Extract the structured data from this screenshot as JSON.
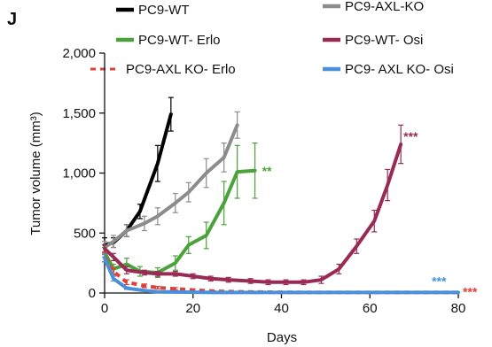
{
  "panel_label": "J",
  "chart_data": {
    "type": "line",
    "xlabel": "Days",
    "ylabel": "Tumor volume (mm³)",
    "xlim": [
      0,
      80
    ],
    "ylim": [
      0,
      2000
    ],
    "xticks": [
      0,
      20,
      40,
      60,
      80
    ],
    "yticks": [
      0,
      500,
      1000,
      1500,
      2000
    ],
    "xtick_labels": [
      "0",
      "20",
      "40",
      "60",
      "80"
    ],
    "ytick_labels": [
      "0",
      "500",
      "1,000",
      "1,500",
      "2,000"
    ],
    "grid": false,
    "legend_position": "top",
    "series": [
      {
        "name": "PC9-WT",
        "color": "#000000",
        "dashed": false,
        "x": [
          0,
          2,
          5,
          8,
          12,
          15
        ],
        "y": [
          400,
          420,
          520,
          680,
          1080,
          1490
        ],
        "err": [
          60,
          40,
          50,
          60,
          150,
          140
        ],
        "significance": ""
      },
      {
        "name": "PC9-AXL-KO",
        "color": "#8c8c8c",
        "dashed": false,
        "x": [
          0,
          2,
          5,
          9,
          12,
          16,
          19,
          23,
          27,
          30
        ],
        "y": [
          380,
          430,
          520,
          580,
          640,
          750,
          840,
          1000,
          1130,
          1400
        ],
        "err": [
          50,
          50,
          50,
          60,
          70,
          80,
          80,
          120,
          120,
          110
        ],
        "significance": ""
      },
      {
        "name": "PC9-WT- Erlo",
        "color": "#4aa33a",
        "dashed": false,
        "x": [
          0,
          2,
          5,
          8,
          12,
          16,
          19,
          23,
          27,
          30,
          34
        ],
        "y": [
          340,
          200,
          240,
          180,
          170,
          250,
          400,
          480,
          750,
          1010,
          1020
        ],
        "err": [
          40,
          40,
          50,
          40,
          40,
          60,
          70,
          110,
          180,
          220,
          230
        ],
        "significance": "**"
      },
      {
        "name": "PC9-WT- Osi",
        "color": "#992a55",
        "dashed": false,
        "x": [
          0,
          2,
          5,
          9,
          12,
          16,
          20,
          24,
          28,
          33,
          37,
          41,
          45,
          49,
          53,
          57,
          61,
          64,
          67
        ],
        "y": [
          370,
          300,
          190,
          170,
          160,
          160,
          140,
          120,
          110,
          100,
          90,
          90,
          90,
          110,
          200,
          390,
          600,
          900,
          1240
        ],
        "err": [
          30,
          30,
          30,
          20,
          20,
          20,
          20,
          20,
          20,
          20,
          20,
          20,
          20,
          30,
          40,
          60,
          90,
          130,
          160
        ],
        "significance": "***"
      },
      {
        "name": "PC9-AXL KO- Erlo",
        "color": "#e0403a",
        "dashed": true,
        "x": [
          0,
          2,
          5,
          9,
          12,
          16,
          20,
          25,
          30,
          35,
          40,
          45,
          50,
          55,
          60,
          65,
          70,
          75,
          80
        ],
        "y": [
          300,
          180,
          90,
          60,
          45,
          35,
          25,
          15,
          10,
          8,
          6,
          5,
          5,
          5,
          5,
          5,
          5,
          5,
          5
        ],
        "err": [
          40,
          30,
          20,
          15,
          10,
          10,
          8,
          6,
          5,
          4,
          4,
          4,
          4,
          4,
          4,
          4,
          4,
          4,
          4
        ],
        "significance": "***"
      },
      {
        "name": "PC9- AXL KO- Osi",
        "color": "#4a90d9",
        "dashed": false,
        "x": [
          0,
          2,
          5,
          9,
          12,
          16,
          20,
          25,
          30,
          35,
          40,
          45,
          50,
          55,
          60,
          65,
          70,
          75,
          80
        ],
        "y": [
          290,
          120,
          40,
          20,
          10,
          8,
          6,
          5,
          5,
          5,
          5,
          5,
          5,
          5,
          5,
          5,
          5,
          5,
          5
        ],
        "err": [
          30,
          20,
          10,
          6,
          5,
          4,
          4,
          4,
          4,
          4,
          4,
          4,
          4,
          4,
          4,
          4,
          4,
          4,
          4
        ],
        "significance": "***"
      }
    ]
  }
}
